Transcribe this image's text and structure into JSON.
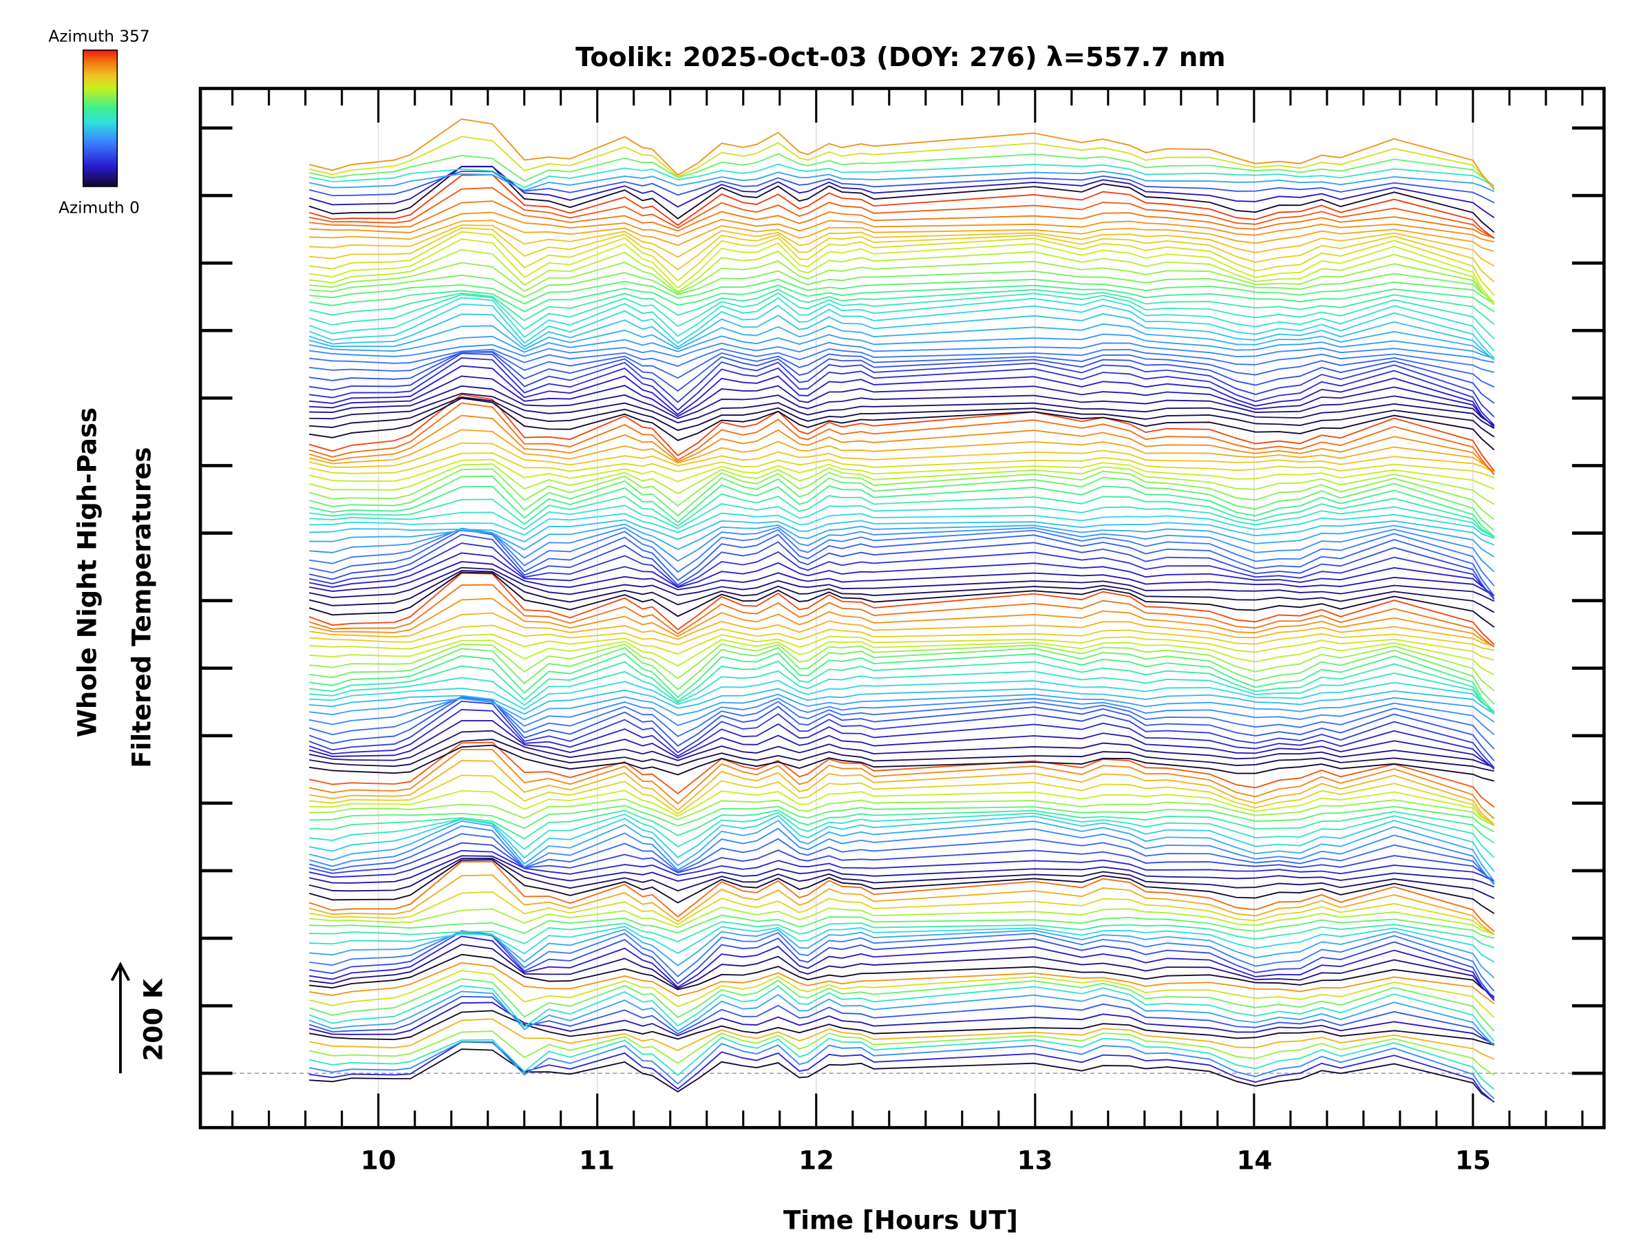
{
  "chart_data": {
    "type": "line",
    "title": "Toolik: 2025-Oct-03 (DOY: 276) λ=557.7 nm",
    "xlabel": "Time [Hours UT]",
    "ylabel": [
      "Whole Night High-Pass",
      "Filtered Temperatures"
    ],
    "x_ticks": [
      10,
      11,
      12,
      13,
      14,
      15
    ],
    "x_tick_labels": [
      "10",
      "11",
      "12",
      "13",
      "14",
      "15"
    ],
    "xlim": [
      9.19,
      15.6
    ],
    "ylim_K": [
      -102,
      1848
    ],
    "y_tick_interval_K": 126.7,
    "minor_ticks_per_hour": 6,
    "grid": "vertical at hours",
    "zero_line": "dashed",
    "scale_bar": {
      "label": "200 K",
      "value_K": 200
    },
    "colorbar": {
      "top_label": "Azimuth 357",
      "bottom_label": "Azimuth 0",
      "min": 0,
      "max": 357,
      "colormap": "jet"
    },
    "stack_offset_K": 12.8,
    "groups_traces": [
      6,
      8,
      13,
      18,
      24,
      26,
      33,
      8
    ],
    "base_series": {
      "name": "lowest trace (azimuth 0)",
      "x": [
        9.684,
        9.79,
        9.878,
        10.073,
        10.146,
        10.38,
        10.521,
        10.667,
        10.779,
        10.876,
        11.125,
        11.207,
        11.251,
        11.368,
        11.46,
        11.568,
        11.665,
        11.728,
        11.826,
        11.923,
        11.962,
        12.059,
        12.118,
        12.205,
        12.264,
        12.994,
        13.213,
        13.31,
        13.432,
        13.505,
        13.603,
        13.797,
        13.919,
        14.007,
        14.114,
        14.211,
        14.309,
        14.396,
        14.64,
        15.0,
        15.039,
        15.097
      ],
      "values": [
        -17,
        -27,
        -20,
        -17,
        -10,
        44,
        40,
        -21,
        -3,
        -10,
        25,
        3,
        2,
        -40,
        -14,
        22,
        11,
        11,
        30,
        -3,
        -3,
        21,
        14,
        17,
        8,
        29,
        14,
        25,
        18,
        5,
        8,
        2,
        -16,
        -24,
        -15,
        -15,
        0,
        -8,
        21,
        -20,
        -42,
        -66
      ]
    }
  }
}
